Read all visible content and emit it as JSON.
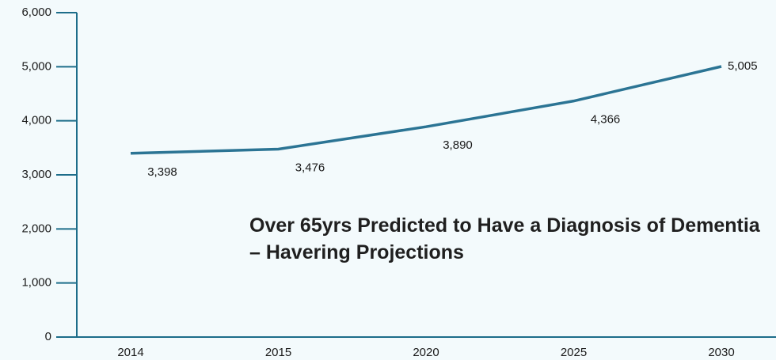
{
  "chart_data": {
    "type": "line",
    "title": "Over 65yrs Predicted to Have a Diagnosis of Dementia – Havering Projections",
    "categories": [
      "2014",
      "2015",
      "2020",
      "2025",
      "2030"
    ],
    "values": [
      3398,
      3476,
      3890,
      4366,
      5005
    ],
    "value_labels": [
      "3,398",
      "3,476",
      "3,890",
      "4,366",
      "5,005"
    ],
    "color": "#2b7494",
    "ylim": [
      0,
      6000
    ],
    "yticks": [
      0,
      {
        "value": 1000,
        "label": "1,000"
      },
      {
        "value": 2000,
        "label": "2,000"
      },
      {
        "value": 3000,
        "label": "3,000"
      },
      {
        "value": 4000,
        "label": "4,000"
      },
      {
        "value": 5000,
        "label": "5,000"
      },
      {
        "value": 6000,
        "label": "6,000"
      }
    ],
    "grid": false
  }
}
